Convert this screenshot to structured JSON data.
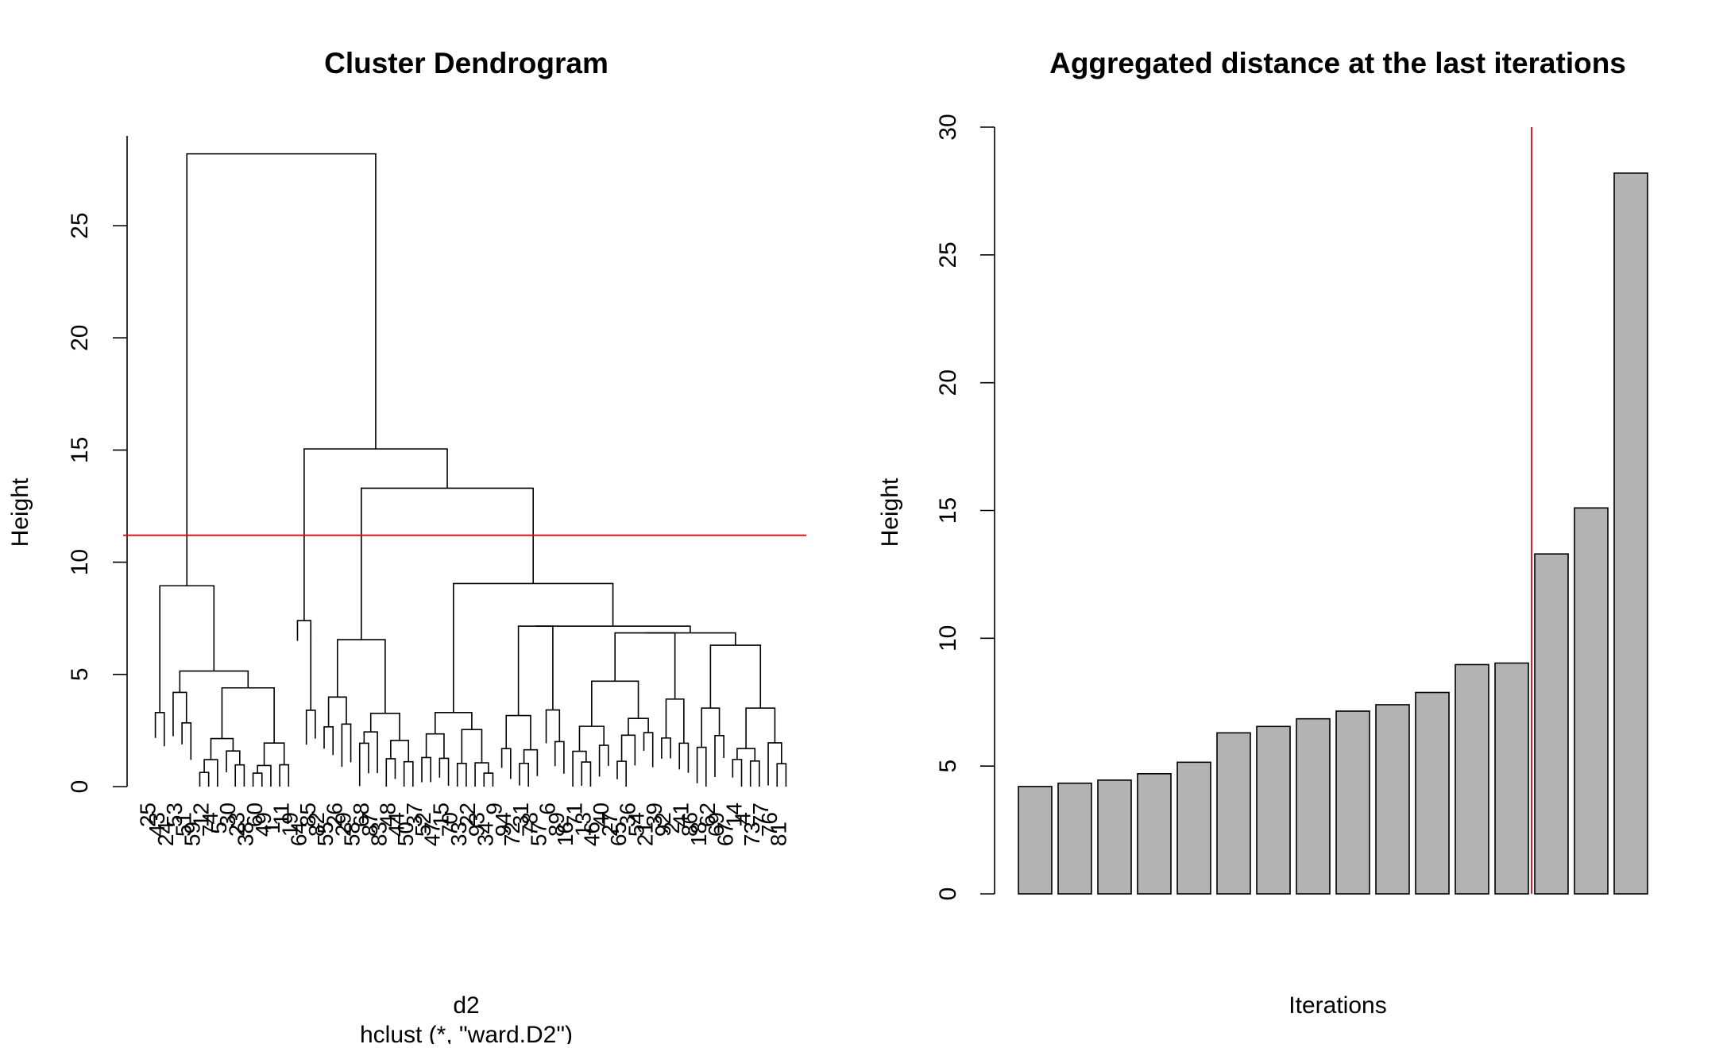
{
  "chart_data": [
    {
      "type": "dendrogram",
      "title": "Cluster Dendrogram",
      "xlabel": "d2",
      "sublabel": "hclust (*, \"ward.D2\")",
      "ylabel": "Height",
      "ylim": [
        0,
        29
      ],
      "yticks": [
        0,
        5,
        10,
        15,
        20,
        25
      ],
      "cut_height": 11.2,
      "cut_line_color": "#e8000b",
      "leaf_labels": [
        "25",
        "43",
        "24",
        "53",
        "51",
        "59",
        "12",
        "74",
        "5",
        "30",
        "23",
        "38",
        "60",
        "49",
        "1",
        "11",
        "19",
        "64",
        "85",
        "82",
        "55",
        "26",
        "29",
        "58",
        "68",
        "87",
        "83",
        "48",
        "44",
        "50",
        "37",
        "52",
        "47",
        "15",
        "70",
        "33",
        "22",
        "93",
        "34",
        "9",
        "94",
        "72",
        "31",
        "78",
        "57",
        "6",
        "89",
        "16",
        "71",
        "13",
        "46",
        "40",
        "27",
        "65",
        "36",
        "54",
        "21",
        "39",
        "92",
        "2",
        "41",
        "86",
        "18",
        "62",
        "69",
        "67",
        "14",
        "4",
        "73",
        "77",
        "76",
        "81"
      ],
      "merges": [
        {
          "x": 100,
          "h": 28.2
        },
        {
          "x": 200,
          "h": 15.05
        },
        {
          "x": 300,
          "h": 13.3
        },
        {
          "x": 400,
          "h": 9.05
        },
        {
          "x": 500,
          "h": 8.95
        },
        {
          "x": 600,
          "h": 7.9
        },
        {
          "x": 700,
          "h": 7.4
        },
        {
          "x": 800,
          "h": 7.15
        },
        {
          "x": 900,
          "h": 6.85
        },
        {
          "x": 1000,
          "h": 6.55
        },
        {
          "x": 1100,
          "h": 6.3
        },
        {
          "x": 1200,
          "h": 5.15
        }
      ]
    },
    {
      "type": "bar",
      "title": "Aggregated distance at the last iterations",
      "xlabel": "Iterations",
      "ylabel": "Height",
      "ylim": [
        0,
        30
      ],
      "yticks": [
        0,
        5,
        10,
        15,
        20,
        25,
        30
      ],
      "values": [
        4.2,
        4.33,
        4.45,
        4.7,
        5.15,
        6.3,
        6.55,
        6.85,
        7.15,
        7.4,
        7.88,
        8.97,
        9.03,
        13.3,
        15.1,
        28.2
      ],
      "bar_color": "#b3b3b3",
      "cut_after_index": 12,
      "cut_line_color": "#e8000b"
    }
  ]
}
